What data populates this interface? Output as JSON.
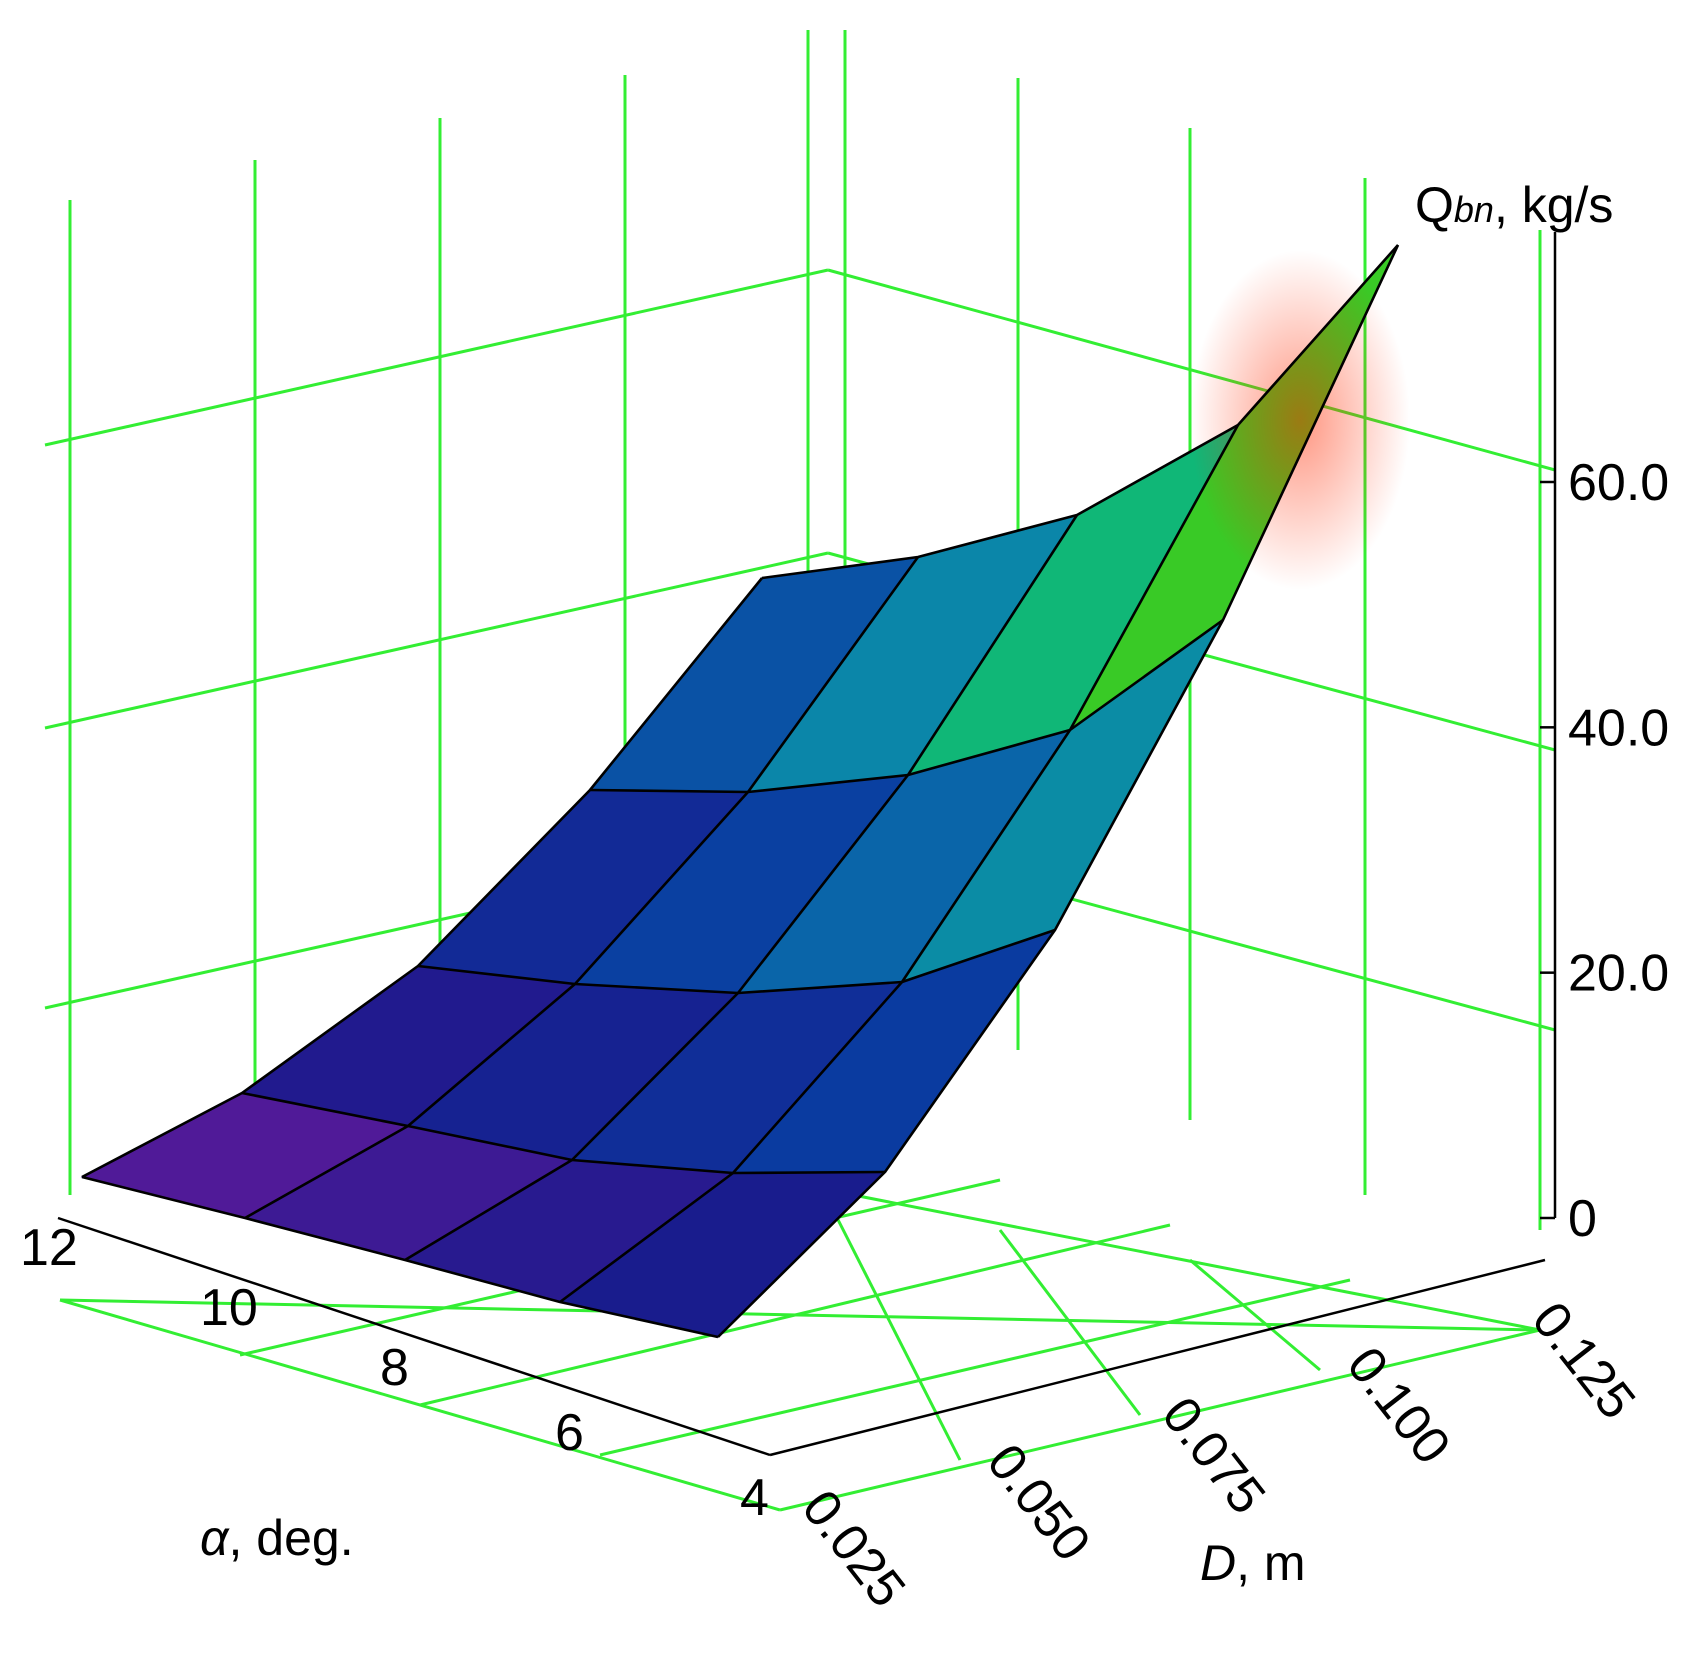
{
  "chart_data": {
    "type": "surface3d",
    "title": "",
    "x": {
      "label_symbol": "α",
      "label_rest": ", deg.",
      "ticks": [
        "12",
        "10",
        "8",
        "6",
        "4"
      ],
      "values": [
        12,
        10,
        8,
        6,
        4
      ]
    },
    "y": {
      "label_symbol": "D",
      "label_rest": ", m",
      "ticks": [
        "0.025",
        "0.050",
        "0.075",
        "0.100",
        "0.125"
      ],
      "values": [
        0.025,
        0.05,
        0.075,
        0.1,
        0.125
      ]
    },
    "z": {
      "label_main": "Q",
      "label_sub": "bn",
      "label_rest": ", kg/s",
      "ticks": [
        "0",
        "20.0",
        "40.0",
        "60.0"
      ],
      "values": [
        0,
        20,
        40,
        60
      ],
      "zlim": [
        0,
        78
      ]
    },
    "surface_Q": [
      [
        0.5,
        1.5,
        4.5,
        9.5,
        19
      ],
      [
        1.0,
        3.0,
        8.0,
        16.0,
        30
      ],
      [
        1.5,
        5.0,
        12.5,
        24.5,
        45
      ],
      [
        2.0,
        7.0,
        17.5,
        35.0,
        62
      ],
      [
        2.5,
        9.5,
        23.0,
        45.0,
        78
      ]
    ],
    "surface_Q_rows": "alpha 12, 10, 8, 6, 4",
    "surface_Q_cols": "D 0.025, 0.050, 0.075, 0.100, 0.125",
    "grid": true,
    "grid_color": "#33ee33",
    "colormap": [
      "#6a1a9e",
      "#1a1a8c",
      "#0a3aa0",
      "#0a7fae",
      "#10b48a",
      "#10c030",
      "#8ee010",
      "#ff2a00"
    ]
  }
}
